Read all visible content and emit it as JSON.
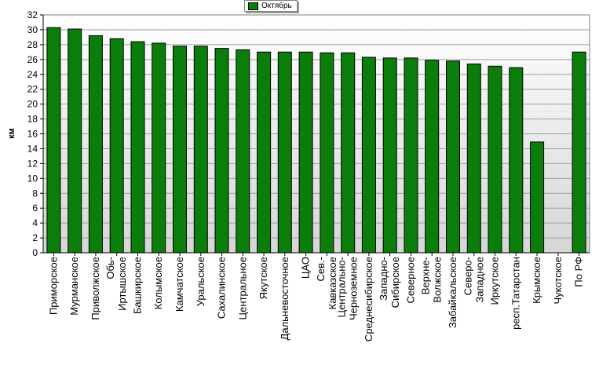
{
  "chart_data": {
    "type": "bar",
    "categories": [
      "Приморское",
      "Мурманское",
      "Приволжское",
      "Обь-Иртышское",
      "Башкирское",
      "Колымское",
      "Камчатское",
      "Уральское",
      "Сахалинское",
      "Центральное",
      "Якутское",
      "Дальневосточное",
      "ЦАО",
      "Сев.-Кавказское",
      "Центрально-Черноземное",
      "Среднесибирское",
      "Западно-Сибирское",
      "Северное",
      "Верхне-Волжское",
      "Забайкальское",
      "Северо-Западное",
      "Иркутское",
      "респ.Татарстан",
      "Крымское",
      "Чукотское",
      "По РФ"
    ],
    "tick_labels": [
      [
        "Приморское"
      ],
      [
        "Мурманское"
      ],
      [
        "Приволжское"
      ],
      [
        "Обь-",
        "Иртышское"
      ],
      [
        "Башкирское"
      ],
      [
        "Колымское"
      ],
      [
        "Камчатское"
      ],
      [
        "Уральское"
      ],
      [
        "Сахалинское"
      ],
      [
        "Центральное"
      ],
      [
        "Якутское"
      ],
      [
        "Дальневосточное"
      ],
      [
        "ЦАО"
      ],
      [
        "Сев.-",
        "Кавказское"
      ],
      [
        "Центрально-",
        "Черноземное"
      ],
      [
        "Среднесибирское"
      ],
      [
        "Западно-",
        "Сибирское"
      ],
      [
        "Северное"
      ],
      [
        "Верхне-",
        "Волжское"
      ],
      [
        "Забайкальское"
      ],
      [
        "Северо-",
        "Западное"
      ],
      [
        "Иркутское"
      ],
      [
        "респ.Татарстан"
      ],
      [
        "Крымское"
      ],
      [
        "Чукотское"
      ],
      [
        "По РФ"
      ]
    ],
    "series": [
      {
        "name": "Октябрь",
        "values": [
          30.3,
          30.1,
          29.2,
          28.8,
          28.4,
          28.2,
          27.8,
          27.8,
          27.5,
          27.3,
          27.0,
          27.0,
          27.0,
          26.9,
          26.9,
          26.3,
          26.2,
          26.2,
          25.9,
          25.8,
          25.4,
          25.1,
          24.9,
          14.9,
          0,
          27.0
        ],
        "color": "#0a7d0a"
      }
    ],
    "ylabel": "км",
    "xlabel": "",
    "title": "",
    "ylim": [
      0,
      32
    ],
    "yticks": [
      0,
      2,
      4,
      6,
      8,
      10,
      12,
      14,
      16,
      18,
      20,
      22,
      24,
      26,
      28,
      30,
      32
    ],
    "grid": "horizontal",
    "legend_position": "top-center",
    "colors": {
      "bar": "#0a7d0a",
      "bar_border": "#000000",
      "plot_bg_top": "#ffffff",
      "plot_bg_bottom": "#d8d8d8",
      "grid": "#a0a0a0"
    }
  }
}
